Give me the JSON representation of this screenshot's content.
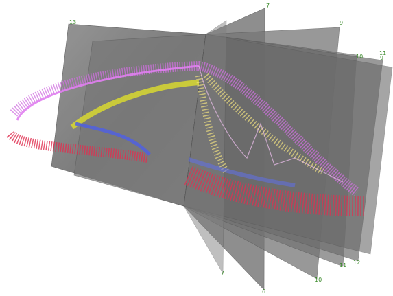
{
  "slice_labels": [
    "13",
    "7",
    "9",
    "10",
    "11",
    "9",
    "7",
    "6",
    "10",
    "11",
    "12"
  ]
}
